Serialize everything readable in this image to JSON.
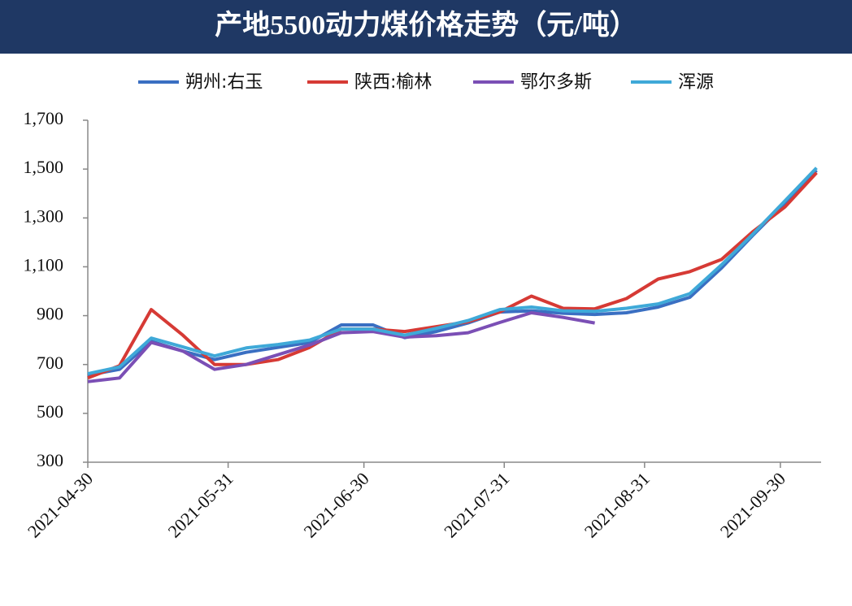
{
  "chart_data": {
    "type": "line",
    "title": "产地5500动力煤价格走势（元/吨）",
    "x": [
      "2021-04-30",
      "2021-05-07",
      "2021-05-14",
      "2021-05-21",
      "2021-05-28",
      "2021-06-04",
      "2021-06-11",
      "2021-06-18",
      "2021-06-25",
      "2021-07-02",
      "2021-07-09",
      "2021-07-16",
      "2021-07-23",
      "2021-07-30",
      "2021-08-06",
      "2021-08-13",
      "2021-08-20",
      "2021-08-27",
      "2021-09-03",
      "2021-09-10",
      "2021-09-17",
      "2021-09-24",
      "2021-10-01",
      "2021-10-08"
    ],
    "series": [
      {
        "name": "朔州:右玉",
        "color": "#3a6fc2",
        "values": [
          656,
          680,
          795,
          755,
          720,
          750,
          770,
          790,
          862,
          862,
          810,
          835,
          870,
          915,
          920,
          910,
          905,
          912,
          935,
          975,
          1095,
          1230,
          1360,
          1495
        ]
      },
      {
        "name": "陕西:榆林",
        "color": "#d63a35",
        "values": [
          645,
          695,
          925,
          820,
          700,
          700,
          720,
          770,
          845,
          845,
          835,
          855,
          875,
          915,
          980,
          930,
          928,
          970,
          1050,
          1080,
          1130,
          1245,
          1345,
          1485
        ]
      },
      {
        "name": "鄂尔多斯",
        "color": "#7b4fb5",
        "values": [
          630,
          645,
          790,
          755,
          680,
          700,
          740,
          780,
          830,
          835,
          812,
          818,
          830,
          872,
          912,
          893,
          870,
          null,
          null,
          null,
          null,
          null,
          null,
          null
        ]
      },
      {
        "name": "浑源",
        "color": "#3fa9d8",
        "values": [
          662,
          690,
          808,
          772,
          735,
          768,
          782,
          800,
          845,
          845,
          820,
          848,
          880,
          925,
          935,
          920,
          918,
          930,
          948,
          990,
          1108,
          1235,
          1370,
          1505
        ]
      }
    ],
    "xlim": [
      "2021-04-30",
      "2021-10-09"
    ],
    "xticks": [
      "2021-04-30",
      "2021-05-31",
      "2021-06-30",
      "2021-07-31",
      "2021-08-31",
      "2021-09-30"
    ],
    "ylim": [
      300,
      1700
    ],
    "yticks": [
      300,
      500,
      700,
      900,
      {
        "value": 1100,
        "label": "1,100"
      },
      {
        "value": 1300,
        "label": "1,300"
      },
      {
        "value": 1500,
        "label": "1,500"
      },
      {
        "value": 1700,
        "label": "1,700"
      }
    ],
    "legend": "top"
  }
}
